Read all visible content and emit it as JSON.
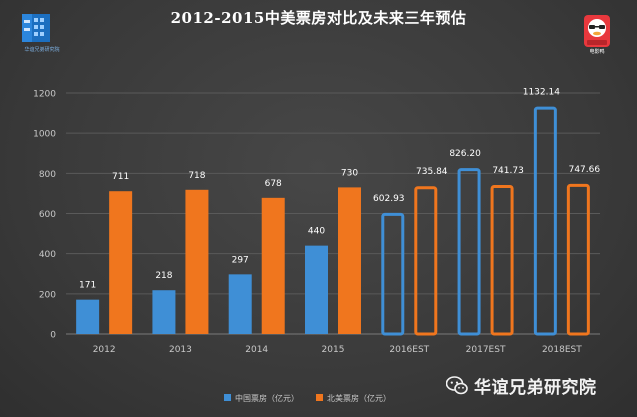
{
  "header": {
    "title": "2012-2015中美票房对比及未来三年预估",
    "left_logo_caption": "华谊兄弟研究院",
    "right_logo_caption": "电影鸭"
  },
  "watermark": {
    "text": "华谊兄弟研究院"
  },
  "colors": {
    "china": "#3f8fd6",
    "na": "#f0761e",
    "axis_text": "#c8c8c8",
    "grid": "#5a5a5a",
    "label": "#ffffff"
  },
  "chart_data": {
    "type": "bar",
    "title": "2012-2015中美票房对比及未来三年预估",
    "xlabel": "",
    "ylabel": "",
    "ylim": [
      0,
      1200
    ],
    "yticks": [
      0,
      200,
      400,
      600,
      800,
      1000,
      1200
    ],
    "grid": true,
    "legend_position": "bottom",
    "categories": [
      "2012",
      "2013",
      "2014",
      "2015",
      "2016EST",
      "2017EST",
      "2018EST"
    ],
    "estimate_from_index": 4,
    "series": [
      {
        "name": "中国票房（亿元）",
        "values": [
          171,
          218,
          297,
          440,
          602.93,
          826.2,
          1132.14
        ],
        "labels": [
          "171",
          "218",
          "297",
          "440",
          "602.93",
          "826.20",
          "1132.14"
        ]
      },
      {
        "name": "北美票房（亿元）",
        "values": [
          711,
          718,
          678,
          730,
          735.84,
          741.73,
          747.66
        ],
        "labels": [
          "711",
          "718",
          "678",
          "730",
          "735.84",
          "741.73",
          "747.66"
        ]
      }
    ]
  }
}
